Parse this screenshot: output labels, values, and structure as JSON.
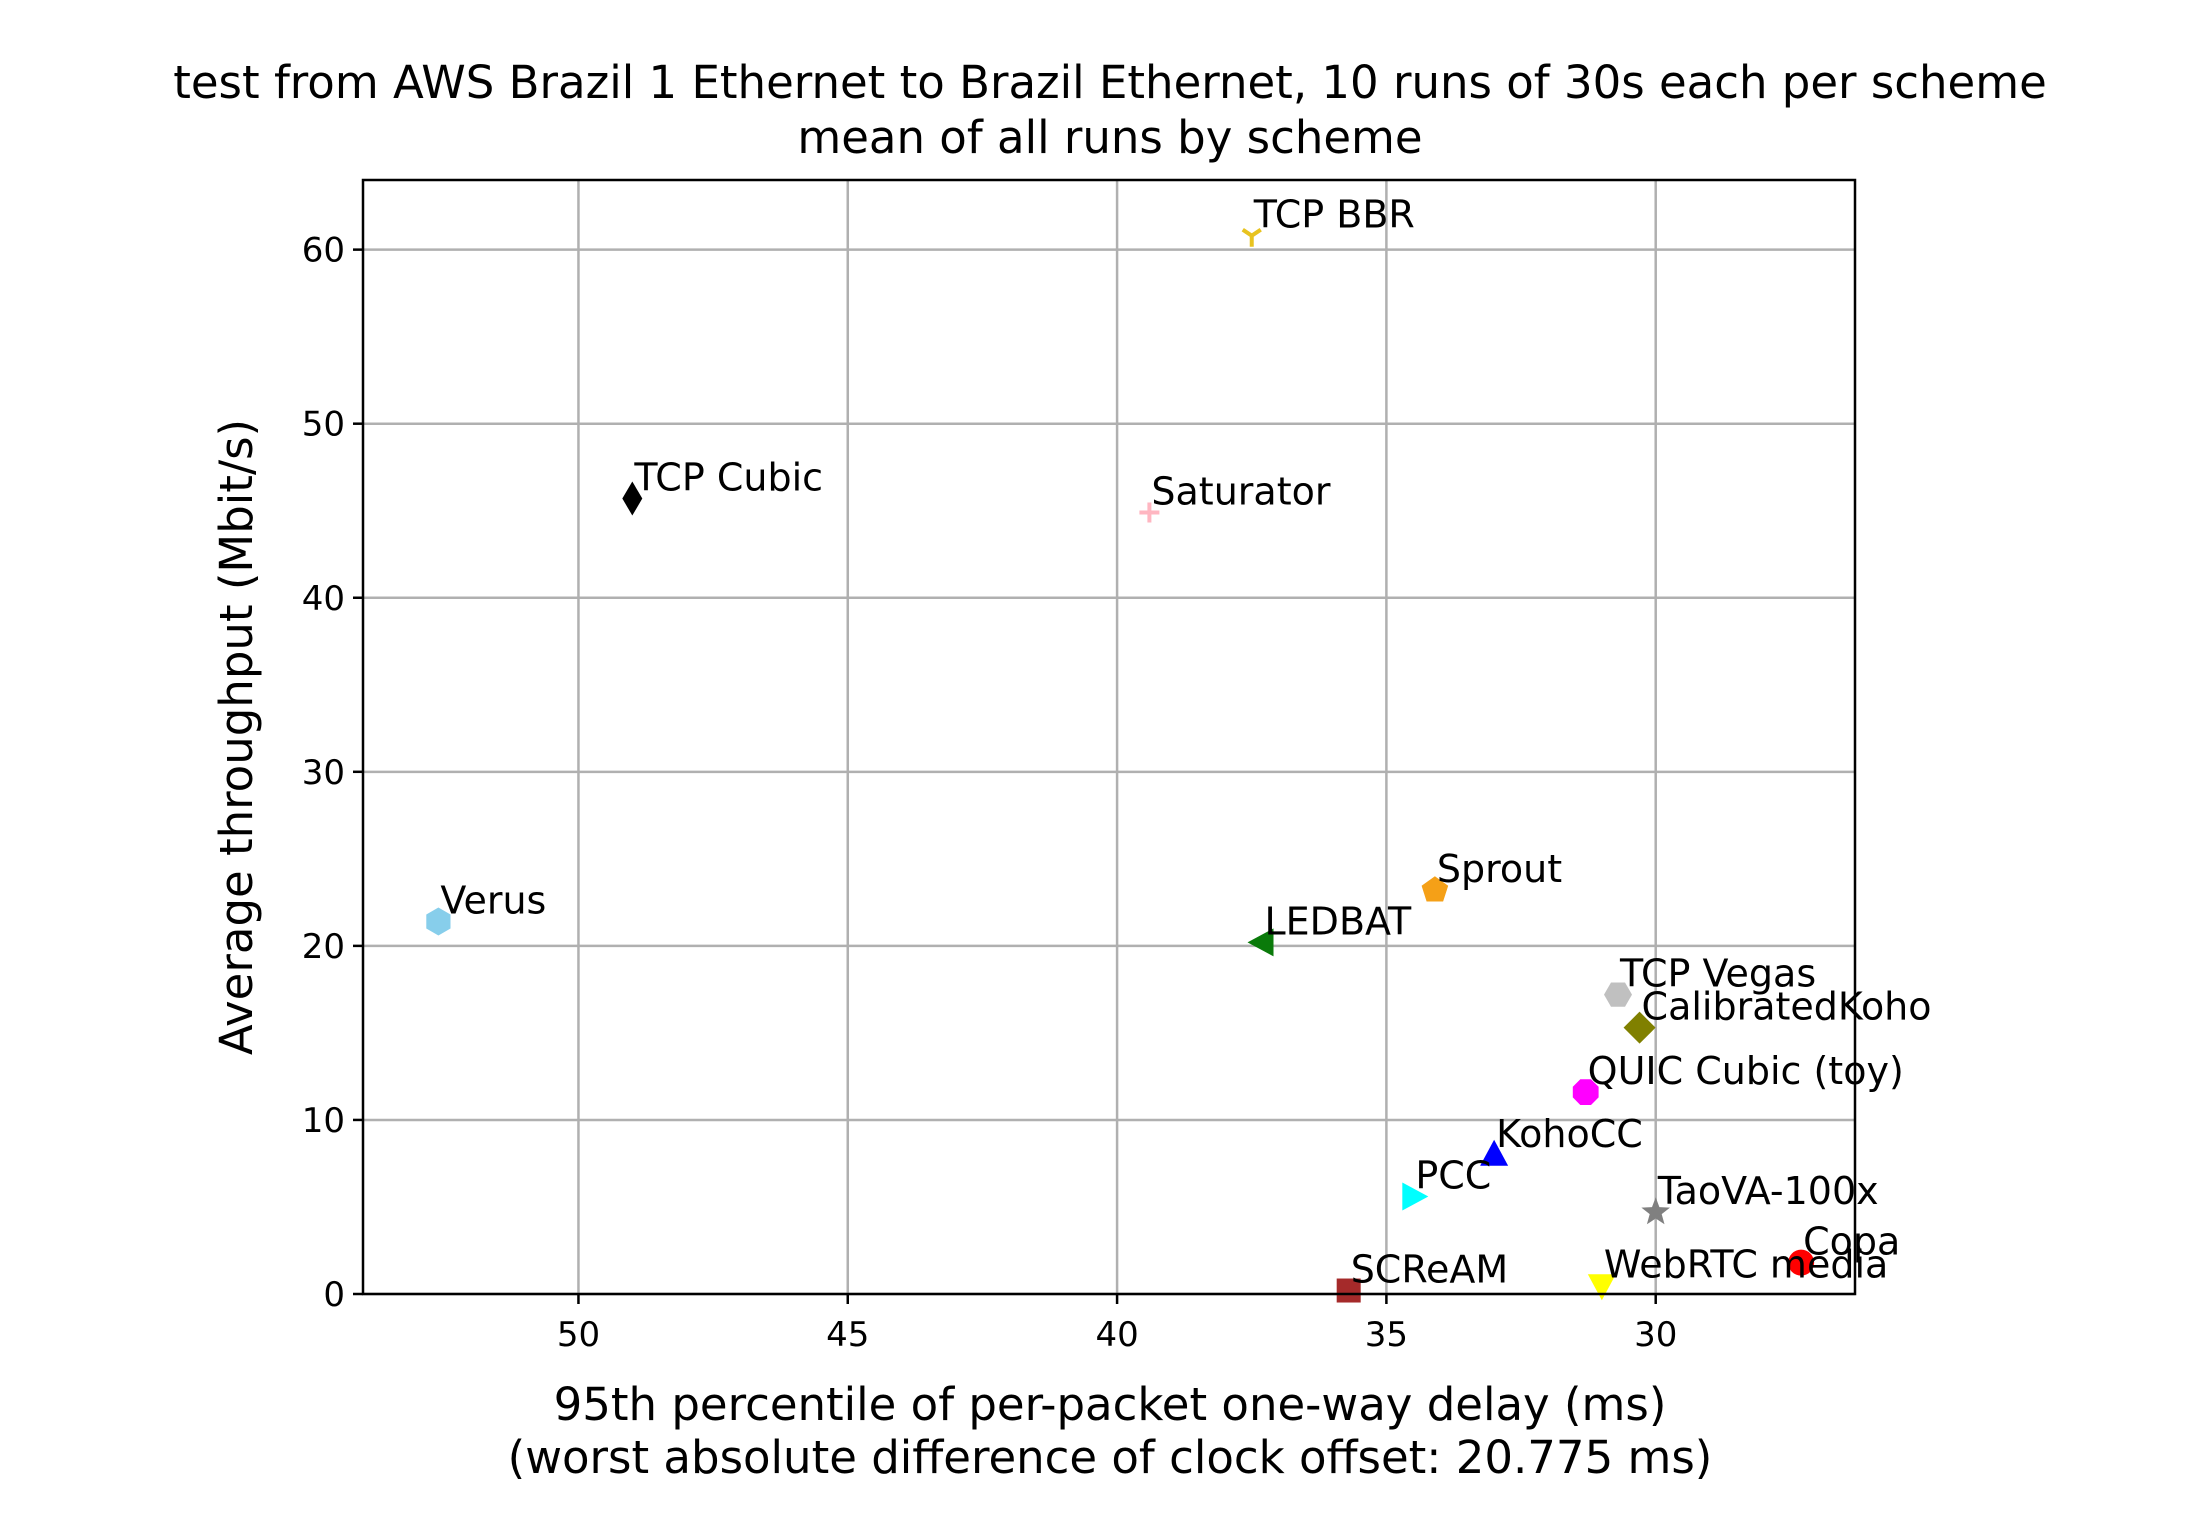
{
  "chart_data": {
    "type": "scatter",
    "title": "test from AWS Brazil 1 Ethernet to Brazil Ethernet, 10 runs of 30s each per scheme",
    "subtitle": "mean of all runs by scheme",
    "xlabel": "95th percentile of per-packet one-way delay (ms)",
    "xlabel2": "(worst absolute difference of clock offset: 20.775 ms)",
    "ylabel": "Average throughput (Mbit/s)",
    "xlim": [
      54,
      26.3
    ],
    "x_inverted": true,
    "ylim": [
      0,
      64
    ],
    "grid": true,
    "x_ticks": [
      50,
      45,
      40,
      35,
      30
    ],
    "x_tick_labels": [
      "50",
      "45",
      "40",
      "35",
      "30"
    ],
    "y_ticks": [
      0,
      10,
      20,
      30,
      40,
      50,
      60
    ],
    "y_tick_labels": [
      "0",
      "10",
      "20",
      "30",
      "40",
      "50",
      "60"
    ],
    "points": [
      {
        "name": "TCP BBR",
        "x": 37.5,
        "y": 60.8,
        "color": "#e8c31f",
        "marker": "tri_down"
      },
      {
        "name": "TCP Cubic",
        "x": 49.0,
        "y": 45.7,
        "color": "#000000",
        "marker": "thin_diamond"
      },
      {
        "name": "Saturator",
        "x": 39.4,
        "y": 44.9,
        "color": "#ffb6c1",
        "marker": "plus"
      },
      {
        "name": "Verus",
        "x": 52.6,
        "y": 21.4,
        "color": "#87ceeb",
        "marker": "hexagon"
      },
      {
        "name": "Sprout",
        "x": 34.1,
        "y": 23.2,
        "color": "#f5a017",
        "marker": "pentagon"
      },
      {
        "name": "LEDBAT",
        "x": 37.3,
        "y": 20.2,
        "color": "#0a7a0a",
        "marker": "triangle_left"
      },
      {
        "name": "TCP Vegas",
        "x": 30.7,
        "y": 17.2,
        "color": "#c0c0c0",
        "marker": "hexagon2"
      },
      {
        "name": "CalibratedKoho",
        "x": 30.3,
        "y": 15.3,
        "color": "#808000",
        "marker": "diamond"
      },
      {
        "name": "QUIC Cubic (toy)",
        "x": 31.3,
        "y": 11.6,
        "color": "#ff00ff",
        "marker": "octagon"
      },
      {
        "name": "KohoCC",
        "x": 33.0,
        "y": 8.0,
        "color": "#0000ff",
        "marker": "triangle_up"
      },
      {
        "name": "PCC",
        "x": 34.5,
        "y": 5.6,
        "color": "#00ffff",
        "marker": "triangle_right"
      },
      {
        "name": "TaoVA-100x",
        "x": 30.0,
        "y": 4.7,
        "color": "#808080",
        "marker": "star"
      },
      {
        "name": "Copa",
        "x": 27.3,
        "y": 1.8,
        "color": "#ff0000",
        "marker": "circle"
      },
      {
        "name": "SCReAM",
        "x": 35.7,
        "y": 0.2,
        "color": "#a52a2a",
        "marker": "square"
      },
      {
        "name": "WebRTC media",
        "x": 31.0,
        "y": 0.5,
        "color": "#ffff00",
        "marker": "triangle_down"
      }
    ]
  }
}
